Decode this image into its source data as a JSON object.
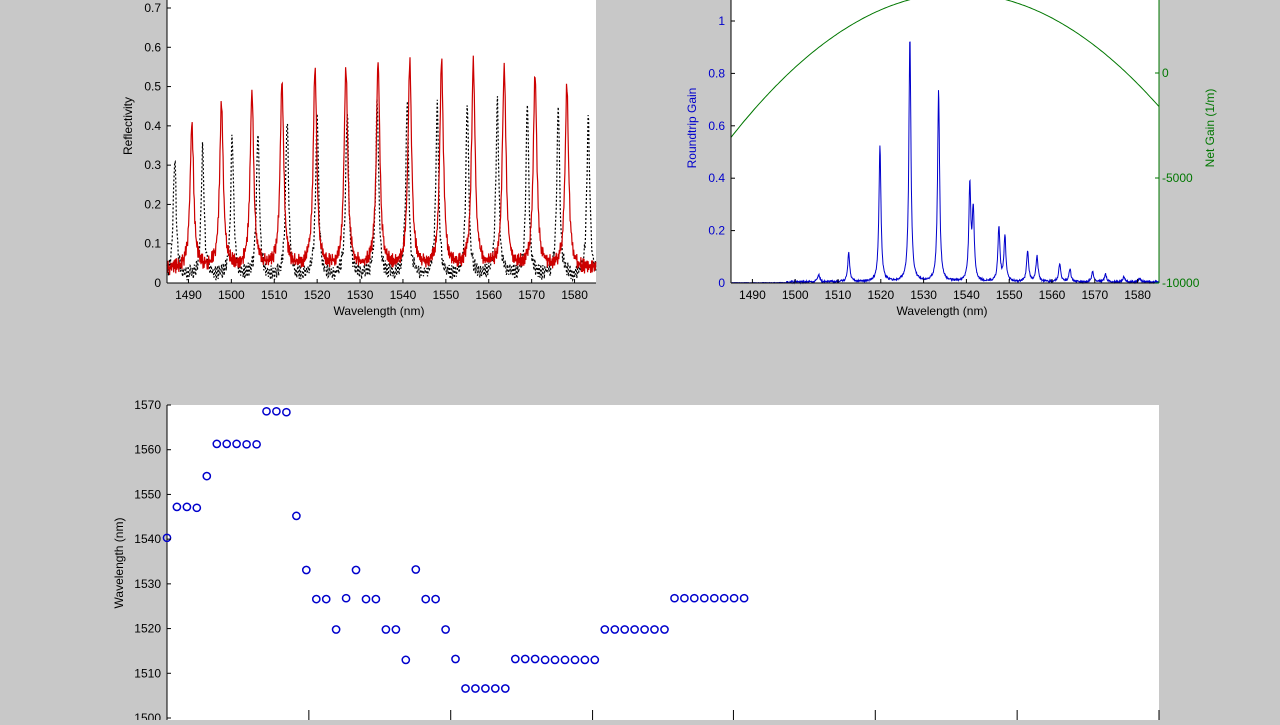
{
  "figure": {
    "background": "#c8c8c8"
  },
  "chart_data": [
    {
      "id": "reflectivity",
      "type": "line",
      "xlabel": "Wavelength (nm)",
      "ylabel": "Reflectivity",
      "xlim": [
        1485,
        1585
      ],
      "ylim": [
        0,
        0.72
      ],
      "xticks": [
        "1490",
        "1500",
        "1510",
        "1520",
        "1530",
        "1540",
        "1550",
        "1560",
        "1570",
        "1580"
      ],
      "yticks": [
        "0",
        "0.1",
        "0.2",
        "0.3",
        "0.4",
        "0.5",
        "0.6",
        "0.7"
      ],
      "series": [
        {
          "style": "dotted",
          "color": "#000000",
          "baseline": 0.025,
          "width": 0.4,
          "peaks": [
            [
              1486.8,
              0.3
            ],
            [
              1493.3,
              0.33
            ],
            [
              1500.2,
              0.36
            ],
            [
              1506.2,
              0.37
            ],
            [
              1513.0,
              0.4
            ],
            [
              1520.0,
              0.42
            ],
            [
              1527.0,
              0.43
            ],
            [
              1534.0,
              0.44
            ],
            [
              1541.0,
              0.45
            ],
            [
              1548.0,
              0.44
            ],
            [
              1555.0,
              0.44
            ],
            [
              1562.0,
              0.45
            ],
            [
              1569.0,
              0.44
            ],
            [
              1576.2,
              0.43
            ],
            [
              1583.2,
              0.41
            ]
          ]
        },
        {
          "style": "solid",
          "color": "#cc0000",
          "baseline": 0.045,
          "width": 0.5,
          "peaks": [
            [
              1490.8,
              0.37
            ],
            [
              1497.7,
              0.42
            ],
            [
              1504.8,
              0.45
            ],
            [
              1511.8,
              0.47
            ],
            [
              1519.5,
              0.5
            ],
            [
              1526.7,
              0.51
            ],
            [
              1534.2,
              0.52
            ],
            [
              1541.6,
              0.53
            ],
            [
              1549.0,
              0.53
            ],
            [
              1556.4,
              0.52
            ],
            [
              1563.6,
              0.51
            ],
            [
              1570.8,
              0.49
            ],
            [
              1578.2,
              0.46
            ]
          ]
        }
      ]
    },
    {
      "id": "roundtrip-gain",
      "type": "line",
      "xlabel": "Wavelength (nm)",
      "ylabel": "Roundtrip Gain",
      "ylabel_right": "Net Gain (1/m)",
      "xlim": [
        1485,
        1585
      ],
      "ylim": [
        0,
        1.1
      ],
      "ylim_right": [
        -10000,
        4000
      ],
      "xticks": [
        "1490",
        "1500",
        "1510",
        "1520",
        "1530",
        "1540",
        "1550",
        "1560",
        "1570",
        "1580"
      ],
      "yticks": [
        "0",
        "0.2",
        "0.4",
        "0.6",
        "0.8",
        "1"
      ],
      "yticks_right": [
        "-10000",
        "-5000",
        "0"
      ],
      "series": [
        {
          "axis": "left",
          "color": "#0000cc",
          "peaks": [
            [
              1505.5,
              0.03
            ],
            [
              1512.5,
              0.11
            ],
            [
              1519.8,
              0.52
            ],
            [
              1526.8,
              0.93
            ],
            [
              1533.5,
              0.73
            ],
            [
              1540.8,
              0.36
            ],
            [
              1541.6,
              0.26
            ],
            [
              1547.6,
              0.21
            ],
            [
              1549.0,
              0.17
            ],
            [
              1554.3,
              0.12
            ],
            [
              1556.5,
              0.1
            ],
            [
              1561.8,
              0.07
            ],
            [
              1564.2,
              0.05
            ],
            [
              1569.5,
              0.04
            ],
            [
              1572.5,
              0.03
            ],
            [
              1576.8,
              0.02
            ],
            [
              1580.5,
              0.015
            ]
          ]
        },
        {
          "axis": "right",
          "color": "#007700",
          "curve": "parabola",
          "vertex": [
            1538,
            3800
          ],
          "end_value": [
            1585,
            -1600
          ]
        }
      ]
    },
    {
      "id": "mode-wavelength",
      "type": "scatter",
      "xlabel": "",
      "ylabel": "Wavelength (nm)",
      "ylim": [
        1500,
        1570
      ],
      "xlim": [
        0,
        100
      ],
      "yticks": [
        "1500",
        "1510",
        "1520",
        "1530",
        "1540",
        "1550",
        "1560",
        "1570"
      ],
      "xtick_values": [
        0,
        14.3,
        28.6,
        42.9,
        57.1,
        71.4,
        85.7,
        100
      ],
      "marker": "circle",
      "color": "#0000cc",
      "x": [
        0,
        1,
        2,
        3,
        4,
        5,
        6,
        7,
        8,
        9,
        10,
        11,
        12,
        13,
        14,
        15,
        16,
        17,
        18,
        19,
        20,
        21,
        22,
        23,
        24,
        25,
        26,
        27,
        28,
        29,
        30,
        31,
        32,
        33,
        34,
        35,
        36,
        37,
        38,
        39,
        40,
        41,
        42,
        43,
        44,
        45,
        46,
        47,
        48,
        49,
        50,
        51,
        52,
        53,
        54,
        55,
        56,
        57,
        58
      ],
      "y": [
        1540.3,
        1547.2,
        1547.2,
        1547.0,
        1554.1,
        1561.3,
        1561.3,
        1561.3,
        1561.2,
        1561.2,
        1568.6,
        1568.6,
        1568.4,
        1545.2,
        1533.1,
        1526.6,
        1526.6,
        1519.8,
        1526.8,
        1533.1,
        1526.6,
        1526.6,
        1519.8,
        1519.8,
        1513.0,
        1533.2,
        1526.6,
        1526.6,
        1519.8,
        1513.2,
        1506.6,
        1506.6,
        1506.6,
        1506.6,
        1506.6,
        1513.2,
        1513.2,
        1513.2,
        1513.0,
        1513.0,
        1513.0,
        1513.0,
        1513.0,
        1513.0,
        1519.8,
        1519.8,
        1519.8,
        1519.8,
        1519.8,
        1519.8,
        1519.8,
        1526.8,
        1526.8,
        1526.8,
        1526.8,
        1526.8,
        1526.8,
        1526.8,
        1526.8
      ]
    }
  ]
}
